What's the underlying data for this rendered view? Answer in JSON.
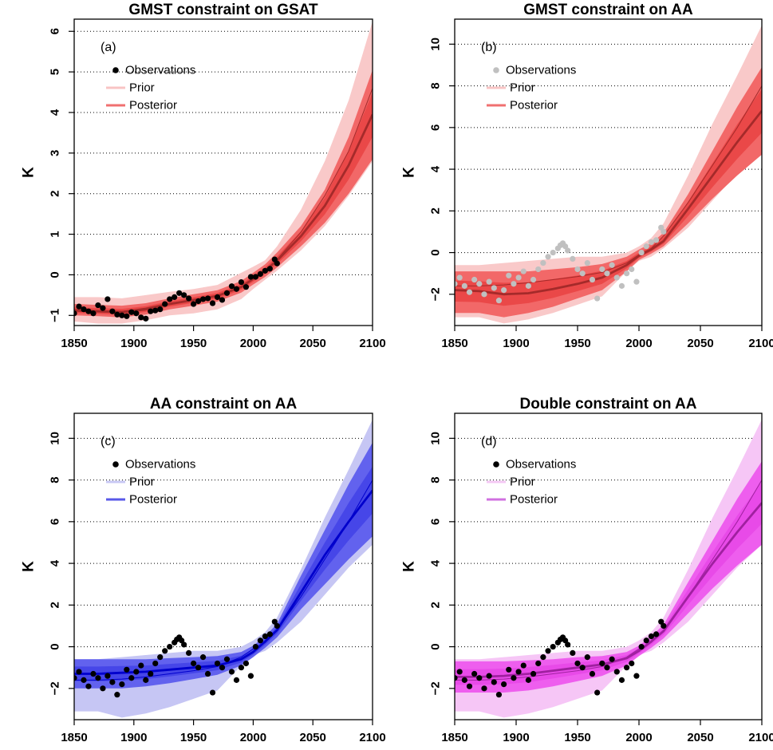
{
  "chart_data": [
    {
      "type": "line",
      "panel": "(a)",
      "title": "GMST constraint on GSAT",
      "ylabel": "K",
      "xlim": [
        1850,
        2100
      ],
      "ylim": [
        -1.25,
        6.3
      ],
      "xticks": [
        1850,
        1900,
        1950,
        2000,
        2050,
        2100
      ],
      "yticks": [
        -1,
        0,
        1,
        2,
        3,
        4,
        5,
        6
      ],
      "grid_y": [
        0,
        1,
        2,
        3,
        4,
        5,
        6
      ],
      "legend": {
        "position": "top-left",
        "entries": [
          "Observations",
          "Prior",
          "Posterior"
        ]
      },
      "colors": {
        "prior_band": "#f9c9c9",
        "post_band": "#f26868",
        "post_inner": "#ea4848",
        "mean_line": "#a52a2a",
        "obs": "#000000",
        "prior_leg": "#f8c4c4",
        "post_leg": "#f07070"
      },
      "obs_color": "#000000",
      "x": [
        1850,
        1870,
        1890,
        1910,
        1930,
        1950,
        1970,
        1990,
        2000,
        2010,
        2020,
        2040,
        2060,
        2080,
        2100
      ],
      "prior_mean": [
        -0.85,
        -0.88,
        -0.9,
        -0.82,
        -0.7,
        -0.62,
        -0.52,
        -0.28,
        -0.08,
        0.12,
        0.38,
        1.05,
        1.95,
        3.05,
        4.6
      ],
      "prior_lower": [
        -1.15,
        -1.2,
        -1.2,
        -1.12,
        -1.0,
        -0.95,
        -0.85,
        -0.6,
        -0.35,
        -0.12,
        0.1,
        0.6,
        1.2,
        1.95,
        2.8
      ],
      "prior_upper": [
        -0.55,
        -0.55,
        -0.58,
        -0.5,
        -0.42,
        -0.35,
        -0.25,
        0.05,
        0.2,
        0.36,
        0.7,
        1.6,
        2.8,
        4.3,
        6.25
      ],
      "post_mean": [
        -0.88,
        -0.9,
        -0.92,
        -0.85,
        -0.72,
        -0.62,
        -0.52,
        -0.3,
        -0.1,
        0.1,
        0.35,
        0.95,
        1.7,
        2.7,
        3.95
      ],
      "post_lower": [
        -1.0,
        -1.02,
        -1.05,
        -0.98,
        -0.85,
        -0.76,
        -0.66,
        -0.44,
        -0.24,
        -0.05,
        0.18,
        0.7,
        1.28,
        2.0,
        2.85
      ],
      "post_upper": [
        -0.72,
        -0.74,
        -0.76,
        -0.7,
        -0.58,
        -0.48,
        -0.38,
        -0.15,
        0.05,
        0.26,
        0.55,
        1.2,
        2.1,
        3.4,
        5.05
      ],
      "obs_x": [
        1850,
        1854,
        1858,
        1862,
        1866,
        1870,
        1874,
        1878,
        1882,
        1886,
        1890,
        1894,
        1898,
        1902,
        1906,
        1910,
        1914,
        1918,
        1922,
        1926,
        1930,
        1934,
        1938,
        1942,
        1946,
        1950,
        1954,
        1958,
        1962,
        1966,
        1970,
        1974,
        1978,
        1982,
        1986,
        1990,
        1994,
        1998,
        2002,
        2006,
        2010,
        2014,
        2018,
        2020
      ],
      "obs_y": [
        -0.95,
        -0.78,
        -0.85,
        -0.9,
        -0.95,
        -0.75,
        -0.82,
        -0.6,
        -0.9,
        -0.98,
        -1.0,
        -1.02,
        -0.92,
        -0.95,
        -1.05,
        -1.08,
        -0.9,
        -0.88,
        -0.85,
        -0.72,
        -0.6,
        -0.55,
        -0.45,
        -0.5,
        -0.58,
        -0.72,
        -0.65,
        -0.6,
        -0.58,
        -0.7,
        -0.55,
        -0.62,
        -0.45,
        -0.28,
        -0.35,
        -0.18,
        -0.3,
        -0.05,
        -0.05,
        0.02,
        0.1,
        0.15,
        0.38,
        0.28
      ]
    },
    {
      "type": "line",
      "panel": "(b)",
      "title": "GMST constraint on AA",
      "ylabel": "K",
      "xlim": [
        1850,
        2100
      ],
      "ylim": [
        -3.5,
        11.2
      ],
      "xticks": [
        1850,
        1900,
        1950,
        2000,
        2050,
        2100
      ],
      "yticks": [
        -2,
        0,
        2,
        4,
        6,
        8,
        10
      ],
      "grid_y": [
        0,
        2,
        4,
        6,
        8,
        10
      ],
      "legend": {
        "position": "top-left",
        "entries": [
          "Observations",
          "Prior",
          "Posterior"
        ]
      },
      "colors": {
        "prior_band": "#f9c9c9",
        "post_band": "#f26868",
        "post_inner": "#ea4848",
        "mean_line": "#a52a2a",
        "obs": "#c0c0c0",
        "prior_leg": "#f8c4c4",
        "post_leg": "#f07070"
      },
      "obs_color": "#c0c0c0",
      "x": [
        1850,
        1870,
        1890,
        1910,
        1930,
        1950,
        1970,
        1990,
        2000,
        2010,
        2020,
        2040,
        2060,
        2080,
        2100
      ],
      "prior_mean": [
        -1.6,
        -1.6,
        -1.55,
        -1.45,
        -1.3,
        -1.15,
        -0.95,
        -0.5,
        -0.1,
        0.2,
        0.8,
        2.4,
        4.2,
        6.0,
        8.0
      ],
      "prior_lower": [
        -3.1,
        -3.1,
        -3.4,
        -3.2,
        -2.9,
        -2.5,
        -2.1,
        -0.9,
        -0.4,
        -0.2,
        0.2,
        1.2,
        2.5,
        3.8,
        4.9
      ],
      "prior_upper": [
        -0.6,
        -0.6,
        -0.5,
        -0.4,
        -0.3,
        -0.2,
        -0.2,
        0.0,
        0.3,
        0.7,
        1.4,
        3.7,
        6.2,
        8.5,
        10.9
      ],
      "post_mean": [
        -1.8,
        -1.85,
        -2.0,
        -1.95,
        -1.75,
        -1.5,
        -1.2,
        -0.6,
        -0.15,
        0.15,
        0.55,
        2.1,
        3.7,
        5.3,
        6.8
      ],
      "post_lower": [
        -2.9,
        -2.9,
        -3.1,
        -2.9,
        -2.6,
        -2.2,
        -1.8,
        -0.9,
        -0.35,
        -0.05,
        0.3,
        1.4,
        2.6,
        3.7,
        4.7
      ],
      "post_upper": [
        -0.9,
        -0.9,
        -0.9,
        -0.9,
        -0.8,
        -0.7,
        -0.55,
        -0.2,
        0.15,
        0.45,
        0.95,
        2.8,
        4.9,
        7.0,
        8.9
      ],
      "obs_x": [
        1850,
        1854,
        1858,
        1862,
        1866,
        1870,
        1874,
        1878,
        1882,
        1886,
        1890,
        1894,
        1898,
        1902,
        1906,
        1910,
        1914,
        1918,
        1922,
        1926,
        1930,
        1934,
        1936,
        1938,
        1940,
        1942,
        1946,
        1950,
        1954,
        1958,
        1962,
        1966,
        1970,
        1974,
        1978,
        1982,
        1986,
        1990,
        1994,
        1998,
        2002,
        2006,
        2010,
        2014,
        2018,
        2020
      ],
      "obs_y": [
        -1.5,
        -1.2,
        -1.6,
        -1.9,
        -1.3,
        -1.5,
        -2.0,
        -1.4,
        -1.7,
        -2.3,
        -1.8,
        -1.1,
        -1.5,
        -1.2,
        -0.9,
        -1.6,
        -1.3,
        -0.8,
        -0.5,
        -0.2,
        0.0,
        0.2,
        0.35,
        0.45,
        0.3,
        0.1,
        -0.3,
        -0.8,
        -1.0,
        -0.5,
        -1.3,
        -2.2,
        -0.8,
        -1.0,
        -0.6,
        -1.2,
        -1.6,
        -1.0,
        -0.8,
        -1.4,
        0.0,
        0.3,
        0.5,
        0.6,
        1.2,
        1.0
      ]
    },
    {
      "type": "line",
      "panel": "(c)",
      "title": "AA constraint on AA",
      "ylabel": "K",
      "xlim": [
        1850,
        2100
      ],
      "ylim": [
        -3.5,
        11.2
      ],
      "xticks": [
        1850,
        1900,
        1950,
        2000,
        2050,
        2100
      ],
      "yticks": [
        -2,
        0,
        2,
        4,
        6,
        8,
        10
      ],
      "grid_y": [
        0,
        2,
        4,
        6,
        8,
        10
      ],
      "legend": {
        "position": "top-left",
        "entries": [
          "Observations",
          "Prior",
          "Posterior"
        ]
      },
      "colors": {
        "prior_band": "#c6c6f4",
        "post_band": "#6262ee",
        "post_inner": "#4646e8",
        "mean_line": "#0000cc",
        "obs": "#000000",
        "prior_leg": "#c8c8f4",
        "post_leg": "#5858e8"
      },
      "obs_color": "#000000",
      "x": [
        1850,
        1870,
        1890,
        1910,
        1930,
        1950,
        1970,
        1990,
        2000,
        2010,
        2020,
        2040,
        2060,
        2080,
        2100
      ],
      "prior_mean": [
        -1.6,
        -1.6,
        -1.55,
        -1.45,
        -1.3,
        -1.15,
        -0.95,
        -0.5,
        -0.1,
        0.2,
        0.8,
        2.4,
        4.2,
        6.0,
        8.0
      ],
      "prior_lower": [
        -3.1,
        -3.1,
        -3.4,
        -3.2,
        -2.9,
        -2.5,
        -2.1,
        -0.9,
        -0.4,
        -0.2,
        0.2,
        1.2,
        2.5,
        3.8,
        4.9
      ],
      "prior_upper": [
        -0.6,
        -0.6,
        -0.5,
        -0.4,
        -0.3,
        -0.2,
        -0.2,
        0.0,
        0.3,
        0.7,
        1.4,
        3.7,
        6.2,
        8.5,
        10.9
      ],
      "post_mean": [
        -1.3,
        -1.3,
        -1.25,
        -1.2,
        -1.1,
        -1.0,
        -0.9,
        -0.6,
        -0.25,
        0.25,
        0.8,
        2.6,
        4.4,
        6.0,
        7.5
      ],
      "post_lower": [
        -2.0,
        -2.0,
        -2.0,
        -1.9,
        -1.75,
        -1.55,
        -1.35,
        -0.9,
        -0.5,
        -0.05,
        0.45,
        1.8,
        3.0,
        4.2,
        5.3
      ],
      "post_upper": [
        -0.6,
        -0.6,
        -0.6,
        -0.6,
        -0.55,
        -0.5,
        -0.45,
        -0.25,
        0.05,
        0.5,
        1.1,
        3.4,
        5.6,
        7.8,
        9.8
      ],
      "obs_x": [
        1850,
        1854,
        1858,
        1862,
        1866,
        1870,
        1874,
        1878,
        1882,
        1886,
        1890,
        1894,
        1898,
        1902,
        1906,
        1910,
        1914,
        1918,
        1922,
        1926,
        1930,
        1934,
        1936,
        1938,
        1940,
        1942,
        1946,
        1950,
        1954,
        1958,
        1962,
        1966,
        1970,
        1974,
        1978,
        1982,
        1986,
        1990,
        1994,
        1998,
        2002,
        2006,
        2010,
        2014,
        2018,
        2020
      ],
      "obs_y": [
        -1.5,
        -1.2,
        -1.6,
        -1.9,
        -1.3,
        -1.5,
        -2.0,
        -1.4,
        -1.7,
        -2.3,
        -1.8,
        -1.1,
        -1.5,
        -1.2,
        -0.9,
        -1.6,
        -1.3,
        -0.8,
        -0.5,
        -0.2,
        0.0,
        0.2,
        0.35,
        0.45,
        0.3,
        0.1,
        -0.3,
        -0.8,
        -1.0,
        -0.5,
        -1.3,
        -2.2,
        -0.8,
        -1.0,
        -0.6,
        -1.2,
        -1.6,
        -1.0,
        -0.8,
        -1.4,
        0.0,
        0.3,
        0.5,
        0.6,
        1.2,
        1.0
      ]
    },
    {
      "type": "line",
      "panel": "(d)",
      "title": "Double constraint on AA",
      "ylabel": "K",
      "xlim": [
        1850,
        2100
      ],
      "ylim": [
        -3.5,
        11.2
      ],
      "xticks": [
        1850,
        1900,
        1950,
        2000,
        2050,
        2100
      ],
      "yticks": [
        -2,
        0,
        2,
        4,
        6,
        8,
        10
      ],
      "grid_y": [
        0,
        2,
        4,
        6,
        8,
        10
      ],
      "legend": {
        "position": "top-left",
        "entries": [
          "Observations",
          "Prior",
          "Posterior"
        ]
      },
      "colors": {
        "prior_band": "#f6c6f6",
        "post_band": "#ee5eee",
        "post_inner": "#e84ae8",
        "mean_line": "#a020a0",
        "obs": "#000000",
        "prior_leg": "#f4c8f4",
        "post_leg": "#d070e0"
      },
      "obs_color": "#000000",
      "x": [
        1850,
        1870,
        1890,
        1910,
        1930,
        1950,
        1970,
        1990,
        2000,
        2010,
        2020,
        2040,
        2060,
        2080,
        2100
      ],
      "prior_mean": [
        -1.6,
        -1.6,
        -1.55,
        -1.45,
        -1.3,
        -1.15,
        -0.95,
        -0.5,
        -0.1,
        0.2,
        0.8,
        2.4,
        4.2,
        6.0,
        8.0
      ],
      "prior_lower": [
        -3.1,
        -3.1,
        -3.4,
        -3.2,
        -2.9,
        -2.5,
        -2.1,
        -0.9,
        -0.4,
        -0.2,
        0.2,
        1.2,
        2.5,
        3.8,
        4.9
      ],
      "prior_upper": [
        -0.6,
        -0.6,
        -0.5,
        -0.4,
        -0.3,
        -0.2,
        -0.2,
        0.0,
        0.3,
        0.7,
        1.4,
        3.7,
        6.2,
        8.5,
        10.9
      ],
      "post_mean": [
        -1.45,
        -1.45,
        -1.4,
        -1.3,
        -1.15,
        -1.0,
        -0.85,
        -0.55,
        -0.2,
        0.25,
        0.75,
        2.4,
        4.0,
        5.5,
        6.9
      ],
      "post_lower": [
        -2.2,
        -2.2,
        -2.2,
        -2.1,
        -1.9,
        -1.65,
        -1.4,
        -0.9,
        -0.45,
        -0.05,
        0.4,
        1.6,
        2.8,
        3.9,
        4.9
      ],
      "post_upper": [
        -0.7,
        -0.7,
        -0.7,
        -0.65,
        -0.6,
        -0.5,
        -0.45,
        -0.25,
        0.05,
        0.5,
        1.05,
        3.1,
        5.1,
        7.1,
        8.9
      ],
      "obs_x": [
        1850,
        1854,
        1858,
        1862,
        1866,
        1870,
        1874,
        1878,
        1882,
        1886,
        1890,
        1894,
        1898,
        1902,
        1906,
        1910,
        1914,
        1918,
        1922,
        1926,
        1930,
        1934,
        1936,
        1938,
        1940,
        1942,
        1946,
        1950,
        1954,
        1958,
        1962,
        1966,
        1970,
        1974,
        1978,
        1982,
        1986,
        1990,
        1994,
        1998,
        2002,
        2006,
        2010,
        2014,
        2018,
        2020
      ],
      "obs_y": [
        -1.5,
        -1.2,
        -1.6,
        -1.9,
        -1.3,
        -1.5,
        -2.0,
        -1.4,
        -1.7,
        -2.3,
        -1.8,
        -1.1,
        -1.5,
        -1.2,
        -0.9,
        -1.6,
        -1.3,
        -0.8,
        -0.5,
        -0.2,
        0.0,
        0.2,
        0.35,
        0.45,
        0.3,
        0.1,
        -0.3,
        -0.8,
        -1.0,
        -0.5,
        -1.3,
        -2.2,
        -0.8,
        -1.0,
        -0.6,
        -1.2,
        -1.6,
        -1.0,
        -0.8,
        -1.4,
        0.0,
        0.3,
        0.5,
        0.6,
        1.2,
        1.0
      ]
    }
  ]
}
